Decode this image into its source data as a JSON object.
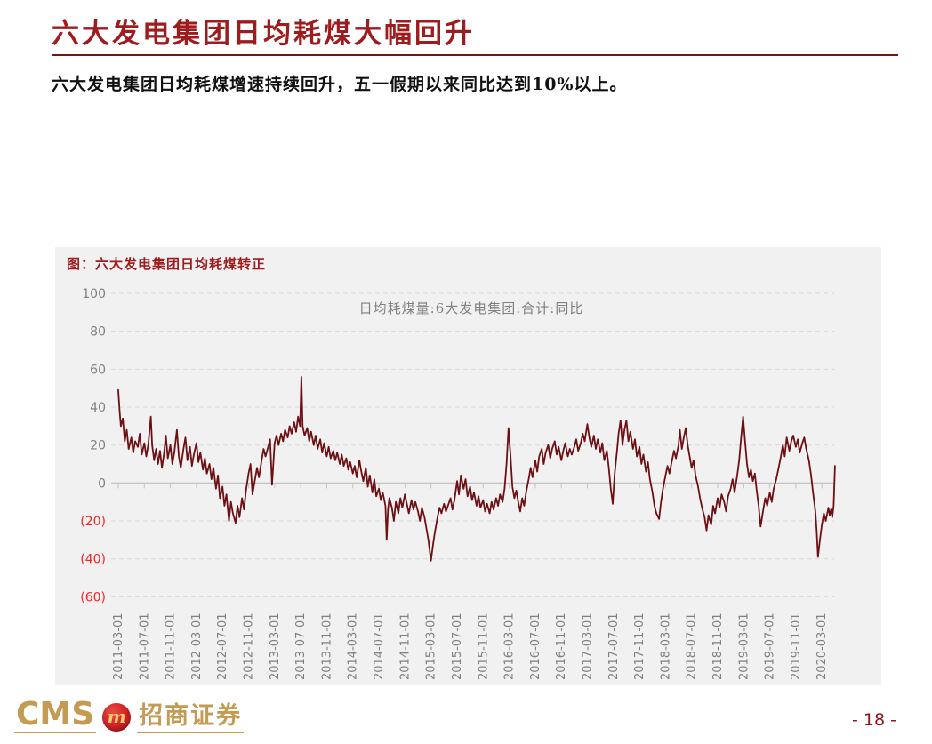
{
  "page": {
    "title": "六大发电集团日均耗煤大幅回升",
    "subtitle": "六大发电集团日均耗煤增速持续回升，五一假期以来同比达到10%以上。",
    "page_number": "- 18 -"
  },
  "footer": {
    "logo_cms": "CMS",
    "logo_badge_glyph": "m",
    "logo_broker_name": "招商证券"
  },
  "colors": {
    "accent_red": "#9e1b1e",
    "line_color": "#6d1013",
    "axis_gray": "#7f7f7f",
    "negative_tick_red": "#ff2222",
    "grid_gray": "#d8d8d8",
    "zero_axis_gray": "#c2c2c2",
    "chart_bg": "#f1f1f2",
    "logo_gold": "#c49b52",
    "badge_red": "#d21f26",
    "page_number_red": "#8f1418"
  },
  "chart_data": {
    "type": "line",
    "title": "图：六大发电集团日均耗煤转正",
    "series_name": "日均耗煤量:6大发电集团:合计:同比",
    "ylabel": "",
    "xlabel": "",
    "ylim": [
      -60,
      100
    ],
    "grid": "horizontal-dashed",
    "legend_position": "top-center-inside",
    "y_ticks": [
      100,
      80,
      60,
      40,
      20,
      0,
      -20,
      -40,
      -60
    ],
    "y_tick_labels": [
      "100",
      "80",
      "60",
      "40",
      "20",
      "0",
      "(20)",
      "(40)",
      "(60)"
    ],
    "x_unit": "months since 2011-03-01",
    "x_labels": [
      "2011-03-01",
      "2011-07-01",
      "2011-11-01",
      "2012-03-01",
      "2012-07-01",
      "2012-11-01",
      "2013-03-01",
      "2013-07-01",
      "2013-11-01",
      "2014-03-01",
      "2014-07-01",
      "2014-11-01",
      "2015-03-01",
      "2015-07-01",
      "2015-11-01",
      "2016-03-01",
      "2016-07-01",
      "2016-11-01",
      "2017-03-01",
      "2017-07-01",
      "2017-11-01",
      "2018-03-01",
      "2018-07-01",
      "2018-11-01",
      "2019-03-01",
      "2019-07-01",
      "2019-11-01",
      "2020-03-01"
    ],
    "x_label_step_months": 4,
    "points": [
      [
        0,
        49
      ],
      [
        0.2,
        38
      ],
      [
        0.4,
        30
      ],
      [
        0.7,
        34
      ],
      [
        1,
        22
      ],
      [
        1.3,
        28
      ],
      [
        1.6,
        18
      ],
      [
        2,
        24
      ],
      [
        2.3,
        16
      ],
      [
        2.6,
        22
      ],
      [
        3,
        19
      ],
      [
        3.3,
        26
      ],
      [
        3.6,
        15
      ],
      [
        4,
        21
      ],
      [
        4.3,
        14
      ],
      [
        4.6,
        20
      ],
      [
        5,
        35
      ],
      [
        5.2,
        20
      ],
      [
        5.5,
        12
      ],
      [
        5.8,
        18
      ],
      [
        6.1,
        10
      ],
      [
        6.4,
        17
      ],
      [
        6.7,
        8
      ],
      [
        7,
        15
      ],
      [
        7.3,
        25
      ],
      [
        7.6,
        13
      ],
      [
        8,
        20
      ],
      [
        8.3,
        10
      ],
      [
        8.6,
        16
      ],
      [
        9,
        28
      ],
      [
        9.3,
        14
      ],
      [
        9.6,
        8
      ],
      [
        10,
        18
      ],
      [
        10.3,
        24
      ],
      [
        10.6,
        12
      ],
      [
        11,
        19
      ],
      [
        11.3,
        9
      ],
      [
        11.6,
        15
      ],
      [
        12,
        21
      ],
      [
        12.3,
        11
      ],
      [
        12.6,
        16
      ],
      [
        13,
        7
      ],
      [
        13.3,
        13
      ],
      [
        13.6,
        5
      ],
      [
        14,
        10
      ],
      [
        14.3,
        2
      ],
      [
        14.6,
        8
      ],
      [
        15,
        -3
      ],
      [
        15.3,
        4
      ],
      [
        15.6,
        -8
      ],
      [
        16,
        -2
      ],
      [
        16.3,
        -12
      ],
      [
        16.6,
        -6
      ],
      [
        17,
        -20
      ],
      [
        17.3,
        -10
      ],
      [
        17.6,
        -16
      ],
      [
        18,
        -21
      ],
      [
        18.3,
        -12
      ],
      [
        18.6,
        -18
      ],
      [
        19,
        -8
      ],
      [
        19.3,
        -14
      ],
      [
        19.6,
        -4
      ],
      [
        20,
        5
      ],
      [
        20.3,
        10
      ],
      [
        20.6,
        -6
      ],
      [
        21,
        2
      ],
      [
        21.3,
        8
      ],
      [
        21.6,
        3
      ],
      [
        22,
        12
      ],
      [
        22.3,
        18
      ],
      [
        22.6,
        14
      ],
      [
        23,
        19
      ],
      [
        23.3,
        23
      ],
      [
        23.6,
        -1
      ],
      [
        24,
        21
      ],
      [
        24.3,
        25
      ],
      [
        24.6,
        20
      ],
      [
        25,
        26
      ],
      [
        25.3,
        22
      ],
      [
        25.6,
        28
      ],
      [
        26,
        24
      ],
      [
        26.3,
        30
      ],
      [
        26.6,
        26
      ],
      [
        27,
        32
      ],
      [
        27.3,
        27
      ],
      [
        27.6,
        35
      ],
      [
        27.9,
        30
      ],
      [
        28.1,
        56
      ],
      [
        28.3,
        30
      ],
      [
        28.6,
        25
      ],
      [
        29,
        29
      ],
      [
        29.3,
        22
      ],
      [
        29.6,
        27
      ],
      [
        30,
        20
      ],
      [
        30.3,
        25
      ],
      [
        30.6,
        18
      ],
      [
        31,
        23
      ],
      [
        31.3,
        16
      ],
      [
        31.6,
        21
      ],
      [
        32,
        14
      ],
      [
        32.3,
        19
      ],
      [
        32.6,
        13
      ],
      [
        33,
        17
      ],
      [
        33.3,
        12
      ],
      [
        33.6,
        16
      ],
      [
        34,
        10
      ],
      [
        34.3,
        15
      ],
      [
        34.6,
        9
      ],
      [
        35,
        13
      ],
      [
        35.3,
        7
      ],
      [
        35.6,
        11
      ],
      [
        36,
        5
      ],
      [
        36.3,
        9
      ],
      [
        36.6,
        3
      ],
      [
        37,
        12
      ],
      [
        37.3,
        6
      ],
      [
        37.6,
        1
      ],
      [
        38,
        8
      ],
      [
        38.3,
        -2
      ],
      [
        38.6,
        4
      ],
      [
        39,
        -5
      ],
      [
        39.3,
        2
      ],
      [
        39.6,
        -7
      ],
      [
        40,
        -3
      ],
      [
        40.3,
        -9
      ],
      [
        40.6,
        -5
      ],
      [
        41,
        -12
      ],
      [
        41.2,
        -30
      ],
      [
        41.4,
        -14
      ],
      [
        41.6,
        -8
      ],
      [
        42,
        -13
      ],
      [
        42.3,
        -20
      ],
      [
        42.6,
        -10
      ],
      [
        43,
        -16
      ],
      [
        43.3,
        -8
      ],
      [
        43.6,
        -13
      ],
      [
        44,
        -6
      ],
      [
        44.3,
        -11
      ],
      [
        44.6,
        -16
      ],
      [
        45,
        -9
      ],
      [
        45.3,
        -14
      ],
      [
        45.6,
        -10
      ],
      [
        46,
        -15
      ],
      [
        46.3,
        -20
      ],
      [
        46.6,
        -13
      ],
      [
        47,
        -18
      ],
      [
        47.3,
        -24
      ],
      [
        47.6,
        -30
      ],
      [
        48,
        -41
      ],
      [
        48.3,
        -33
      ],
      [
        48.6,
        -26
      ],
      [
        49,
        -18
      ],
      [
        49.3,
        -13
      ],
      [
        49.6,
        -16
      ],
      [
        50,
        -11
      ],
      [
        50.3,
        -15
      ],
      [
        50.6,
        -12
      ],
      [
        51,
        -8
      ],
      [
        51.3,
        -14
      ],
      [
        51.6,
        -9
      ],
      [
        52,
        1
      ],
      [
        52.3,
        -6
      ],
      [
        52.6,
        4
      ],
      [
        53,
        -3
      ],
      [
        53.3,
        2
      ],
      [
        53.6,
        -7
      ],
      [
        54,
        -2
      ],
      [
        54.3,
        -9
      ],
      [
        54.6,
        -5
      ],
      [
        55,
        -12
      ],
      [
        55.3,
        -7
      ],
      [
        55.6,
        -13
      ],
      [
        56,
        -9
      ],
      [
        56.3,
        -15
      ],
      [
        56.6,
        -11
      ],
      [
        57,
        -16
      ],
      [
        57.3,
        -10
      ],
      [
        57.6,
        -14
      ],
      [
        58,
        -8
      ],
      [
        58.3,
        -12
      ],
      [
        58.6,
        -6
      ],
      [
        59,
        -10
      ],
      [
        59.3,
        -3
      ],
      [
        59.6,
        10
      ],
      [
        59.9,
        29
      ],
      [
        60.2,
        15
      ],
      [
        60.5,
        -2
      ],
      [
        60.8,
        -8
      ],
      [
        61.1,
        -4
      ],
      [
        61.4,
        -10
      ],
      [
        61.7,
        -15
      ],
      [
        62,
        -8
      ],
      [
        62.3,
        -12
      ],
      [
        62.6,
        -5
      ],
      [
        63,
        2
      ],
      [
        63.3,
        8
      ],
      [
        63.6,
        3
      ],
      [
        64,
        12
      ],
      [
        64.3,
        6
      ],
      [
        64.6,
        14
      ],
      [
        65,
        18
      ],
      [
        65.3,
        10
      ],
      [
        65.6,
        16
      ],
      [
        66,
        20
      ],
      [
        66.3,
        13
      ],
      [
        66.6,
        18
      ],
      [
        67,
        22
      ],
      [
        67.3,
        15
      ],
      [
        67.6,
        19
      ],
      [
        68,
        12
      ],
      [
        68.3,
        17
      ],
      [
        68.6,
        21
      ],
      [
        69,
        14
      ],
      [
        69.3,
        18
      ],
      [
        69.6,
        15
      ],
      [
        70,
        19
      ],
      [
        70.3,
        23
      ],
      [
        70.6,
        17
      ],
      [
        71,
        21
      ],
      [
        71.3,
        26
      ],
      [
        71.6,
        22
      ],
      [
        72,
        31
      ],
      [
        72.3,
        24
      ],
      [
        72.6,
        19
      ],
      [
        73,
        25
      ],
      [
        73.3,
        18
      ],
      [
        73.6,
        23
      ],
      [
        74,
        16
      ],
      [
        74.3,
        21
      ],
      [
        74.6,
        12
      ],
      [
        75,
        17
      ],
      [
        75.3,
        8
      ],
      [
        75.6,
        -3
      ],
      [
        75.9,
        -11
      ],
      [
        76.2,
        5
      ],
      [
        76.5,
        15
      ],
      [
        76.8,
        26
      ],
      [
        77.1,
        33
      ],
      [
        77.4,
        20
      ],
      [
        77.7,
        28
      ],
      [
        78,
        33
      ],
      [
        78.3,
        22
      ],
      [
        78.6,
        27
      ],
      [
        79,
        18
      ],
      [
        79.3,
        23
      ],
      [
        79.6,
        14
      ],
      [
        80,
        19
      ],
      [
        80.3,
        10
      ],
      [
        80.6,
        15
      ],
      [
        81,
        6
      ],
      [
        81.3,
        11
      ],
      [
        81.6,
        2
      ],
      [
        82,
        -5
      ],
      [
        82.3,
        -12
      ],
      [
        82.6,
        -16
      ],
      [
        83,
        -19
      ],
      [
        83.3,
        -10
      ],
      [
        83.6,
        -3
      ],
      [
        84,
        4
      ],
      [
        84.3,
        9
      ],
      [
        84.6,
        5
      ],
      [
        85,
        12
      ],
      [
        85.3,
        17
      ],
      [
        85.6,
        13
      ],
      [
        86,
        20
      ],
      [
        86.2,
        28
      ],
      [
        86.5,
        18
      ],
      [
        86.8,
        24
      ],
      [
        87.1,
        29
      ],
      [
        87.4,
        20
      ],
      [
        87.7,
        14
      ],
      [
        88,
        8
      ],
      [
        88.3,
        12
      ],
      [
        88.6,
        4
      ],
      [
        89,
        -2
      ],
      [
        89.3,
        -8
      ],
      [
        89.6,
        -13
      ],
      [
        90,
        -18
      ],
      [
        90.3,
        -25
      ],
      [
        90.6,
        -17
      ],
      [
        91,
        -22
      ],
      [
        91.3,
        -12
      ],
      [
        91.6,
        -16
      ],
      [
        92,
        -8
      ],
      [
        92.3,
        -13
      ],
      [
        92.6,
        -6
      ],
      [
        93,
        -10
      ],
      [
        93.3,
        -15
      ],
      [
        93.6,
        -7
      ],
      [
        94,
        -3
      ],
      [
        94.3,
        2
      ],
      [
        94.6,
        -5
      ],
      [
        95,
        4
      ],
      [
        95.3,
        12
      ],
      [
        95.6,
        24
      ],
      [
        95.9,
        35
      ],
      [
        96.2,
        22
      ],
      [
        96.5,
        10
      ],
      [
        96.8,
        3
      ],
      [
        97.1,
        7
      ],
      [
        97.4,
        1
      ],
      [
        97.7,
        5
      ],
      [
        98,
        -4
      ],
      [
        98.3,
        -12
      ],
      [
        98.6,
        -23
      ],
      [
        99,
        -14
      ],
      [
        99.3,
        -8
      ],
      [
        99.6,
        -12
      ],
      [
        100,
        -5
      ],
      [
        100.3,
        -10
      ],
      [
        100.6,
        -3
      ],
      [
        101,
        2
      ],
      [
        101.3,
        7
      ],
      [
        101.6,
        12
      ],
      [
        102,
        20
      ],
      [
        102.3,
        14
      ],
      [
        102.6,
        24
      ],
      [
        103,
        17
      ],
      [
        103.3,
        22
      ],
      [
        103.6,
        25
      ],
      [
        104,
        19
      ],
      [
        104.3,
        23
      ],
      [
        104.6,
        16
      ],
      [
        105,
        21
      ],
      [
        105.3,
        24
      ],
      [
        105.6,
        18
      ],
      [
        106,
        12
      ],
      [
        106.3,
        5
      ],
      [
        106.6,
        -4
      ],
      [
        107,
        -15
      ],
      [
        107.2,
        -25
      ],
      [
        107.4,
        -39
      ],
      [
        107.7,
        -30
      ],
      [
        108,
        -22
      ],
      [
        108.3,
        -16
      ],
      [
        108.6,
        -20
      ],
      [
        109,
        -13
      ],
      [
        109.2,
        -17
      ],
      [
        109.4,
        -14
      ],
      [
        109.6,
        -18
      ],
      [
        109.8,
        -12
      ],
      [
        110,
        9
      ]
    ]
  }
}
